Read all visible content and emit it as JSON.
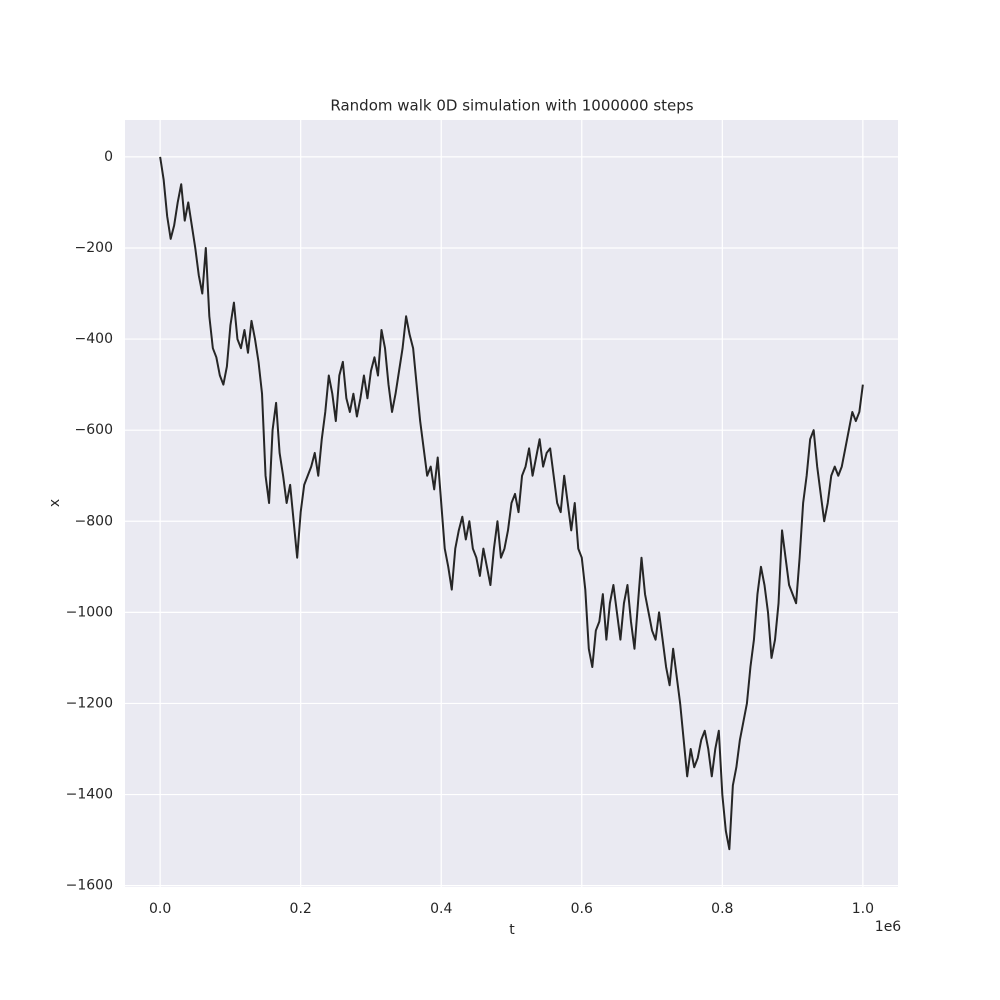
{
  "chart_data": {
    "type": "line",
    "title": "Random walk 0D simulation with 1000000 steps",
    "xlabel": "t",
    "ylabel": "x",
    "x_offset_text": "1e6",
    "x": [
      0,
      5000,
      10000,
      15000,
      20000,
      25000,
      30000,
      35000,
      40000,
      45000,
      50000,
      55000,
      60000,
      65000,
      70000,
      75000,
      80000,
      85000,
      90000,
      95000,
      100000,
      105000,
      110000,
      115000,
      120000,
      125000,
      130000,
      135000,
      140000,
      145000,
      150000,
      155000,
      160000,
      165000,
      170000,
      175000,
      180000,
      185000,
      190000,
      195000,
      200000,
      205000,
      210000,
      215000,
      220000,
      225000,
      230000,
      235000,
      240000,
      245000,
      250000,
      255000,
      260000,
      265000,
      270000,
      275000,
      280000,
      285000,
      290000,
      295000,
      300000,
      305000,
      310000,
      315000,
      320000,
      325000,
      330000,
      335000,
      340000,
      345000,
      350000,
      355000,
      360000,
      365000,
      370000,
      375000,
      380000,
      385000,
      390000,
      395000,
      400000,
      405000,
      410000,
      415000,
      420000,
      425000,
      430000,
      435000,
      440000,
      445000,
      450000,
      455000,
      460000,
      465000,
      470000,
      475000,
      480000,
      485000,
      490000,
      495000,
      500000,
      505000,
      510000,
      515000,
      520000,
      525000,
      530000,
      535000,
      540000,
      545000,
      550000,
      555000,
      560000,
      565000,
      570000,
      575000,
      580000,
      585000,
      590000,
      595000,
      600000,
      605000,
      610000,
      615000,
      620000,
      625000,
      630000,
      635000,
      640000,
      645000,
      650000,
      655000,
      660000,
      665000,
      670000,
      675000,
      680000,
      685000,
      690000,
      695000,
      700000,
      705000,
      710000,
      715000,
      720000,
      725000,
      730000,
      735000,
      740000,
      745000,
      750000,
      755000,
      760000,
      765000,
      770000,
      775000,
      780000,
      785000,
      790000,
      795000,
      800000,
      805000,
      810000,
      815000,
      820000,
      825000,
      830000,
      835000,
      840000,
      845000,
      850000,
      855000,
      860000,
      865000,
      870000,
      875000,
      880000,
      885000,
      890000,
      895000,
      900000,
      905000,
      910000,
      915000,
      920000,
      925000,
      930000,
      935000,
      940000,
      945000,
      950000,
      955000,
      960000,
      965000,
      970000,
      975000,
      980000,
      985000,
      990000,
      995000,
      1000000
    ],
    "series": [
      {
        "name": "x",
        "color": "#262626",
        "values": [
          0,
          -50,
          -130,
          -180,
          -150,
          -100,
          -60,
          -140,
          -100,
          -150,
          -200,
          -260,
          -300,
          -200,
          -350,
          -420,
          -440,
          -480,
          -500,
          -460,
          -370,
          -320,
          -400,
          -420,
          -380,
          -430,
          -360,
          -400,
          -450,
          -520,
          -700,
          -760,
          -600,
          -540,
          -650,
          -700,
          -760,
          -720,
          -800,
          -880,
          -780,
          -720,
          -700,
          -680,
          -650,
          -700,
          -620,
          -560,
          -480,
          -520,
          -580,
          -480,
          -450,
          -530,
          -560,
          -520,
          -570,
          -530,
          -480,
          -530,
          -470,
          -440,
          -480,
          -380,
          -420,
          -500,
          -560,
          -520,
          -470,
          -420,
          -350,
          -390,
          -420,
          -500,
          -580,
          -640,
          -700,
          -680,
          -730,
          -660,
          -760,
          -860,
          -900,
          -950,
          -860,
          -820,
          -790,
          -840,
          -800,
          -860,
          -880,
          -920,
          -860,
          -900,
          -940,
          -860,
          -800,
          -880,
          -860,
          -820,
          -760,
          -740,
          -780,
          -700,
          -680,
          -640,
          -700,
          -660,
          -620,
          -680,
          -650,
          -640,
          -700,
          -760,
          -780,
          -700,
          -760,
          -820,
          -760,
          -860,
          -880,
          -950,
          -1080,
          -1120,
          -1040,
          -1020,
          -960,
          -1060,
          -980,
          -940,
          -1000,
          -1060,
          -980,
          -940,
          -1020,
          -1080,
          -980,
          -880,
          -960,
          -1000,
          -1040,
          -1060,
          -1000,
          -1060,
          -1120,
          -1160,
          -1080,
          -1140,
          -1200,
          -1280,
          -1360,
          -1300,
          -1340,
          -1320,
          -1280,
          -1260,
          -1300,
          -1360,
          -1300,
          -1260,
          -1400,
          -1480,
          -1520,
          -1380,
          -1340,
          -1280,
          -1240,
          -1200,
          -1120,
          -1060,
          -960,
          -900,
          -940,
          -1000,
          -1100,
          -1060,
          -980,
          -820,
          -880,
          -940,
          -960,
          -980,
          -880,
          -760,
          -700,
          -620,
          -600,
          -680,
          -740,
          -800,
          -760,
          -700,
          -680,
          -700,
          -680,
          -640,
          -600,
          -560,
          -580,
          -560,
          -500
        ]
      }
    ],
    "xlim": [
      -50000,
      1050000
    ],
    "ylim": [
      -1603,
      81
    ],
    "xticks": [
      {
        "value": 0,
        "label": "0.0"
      },
      {
        "value": 200000,
        "label": "0.2"
      },
      {
        "value": 400000,
        "label": "0.4"
      },
      {
        "value": 600000,
        "label": "0.6"
      },
      {
        "value": 800000,
        "label": "0.8"
      },
      {
        "value": 1000000,
        "label": "1.0"
      }
    ],
    "yticks": [
      0,
      {
        "value": -200,
        "label": "−200"
      },
      {
        "value": -400,
        "label": "−400"
      },
      {
        "value": -600,
        "label": "−600"
      },
      {
        "value": -800,
        "label": "−800"
      },
      {
        "value": -1000,
        "label": "−1000"
      },
      {
        "value": -1200,
        "label": "−1200"
      },
      {
        "value": -1400,
        "label": "−1400"
      },
      {
        "value": -1600,
        "label": "−1600"
      }
    ],
    "grid": true
  }
}
